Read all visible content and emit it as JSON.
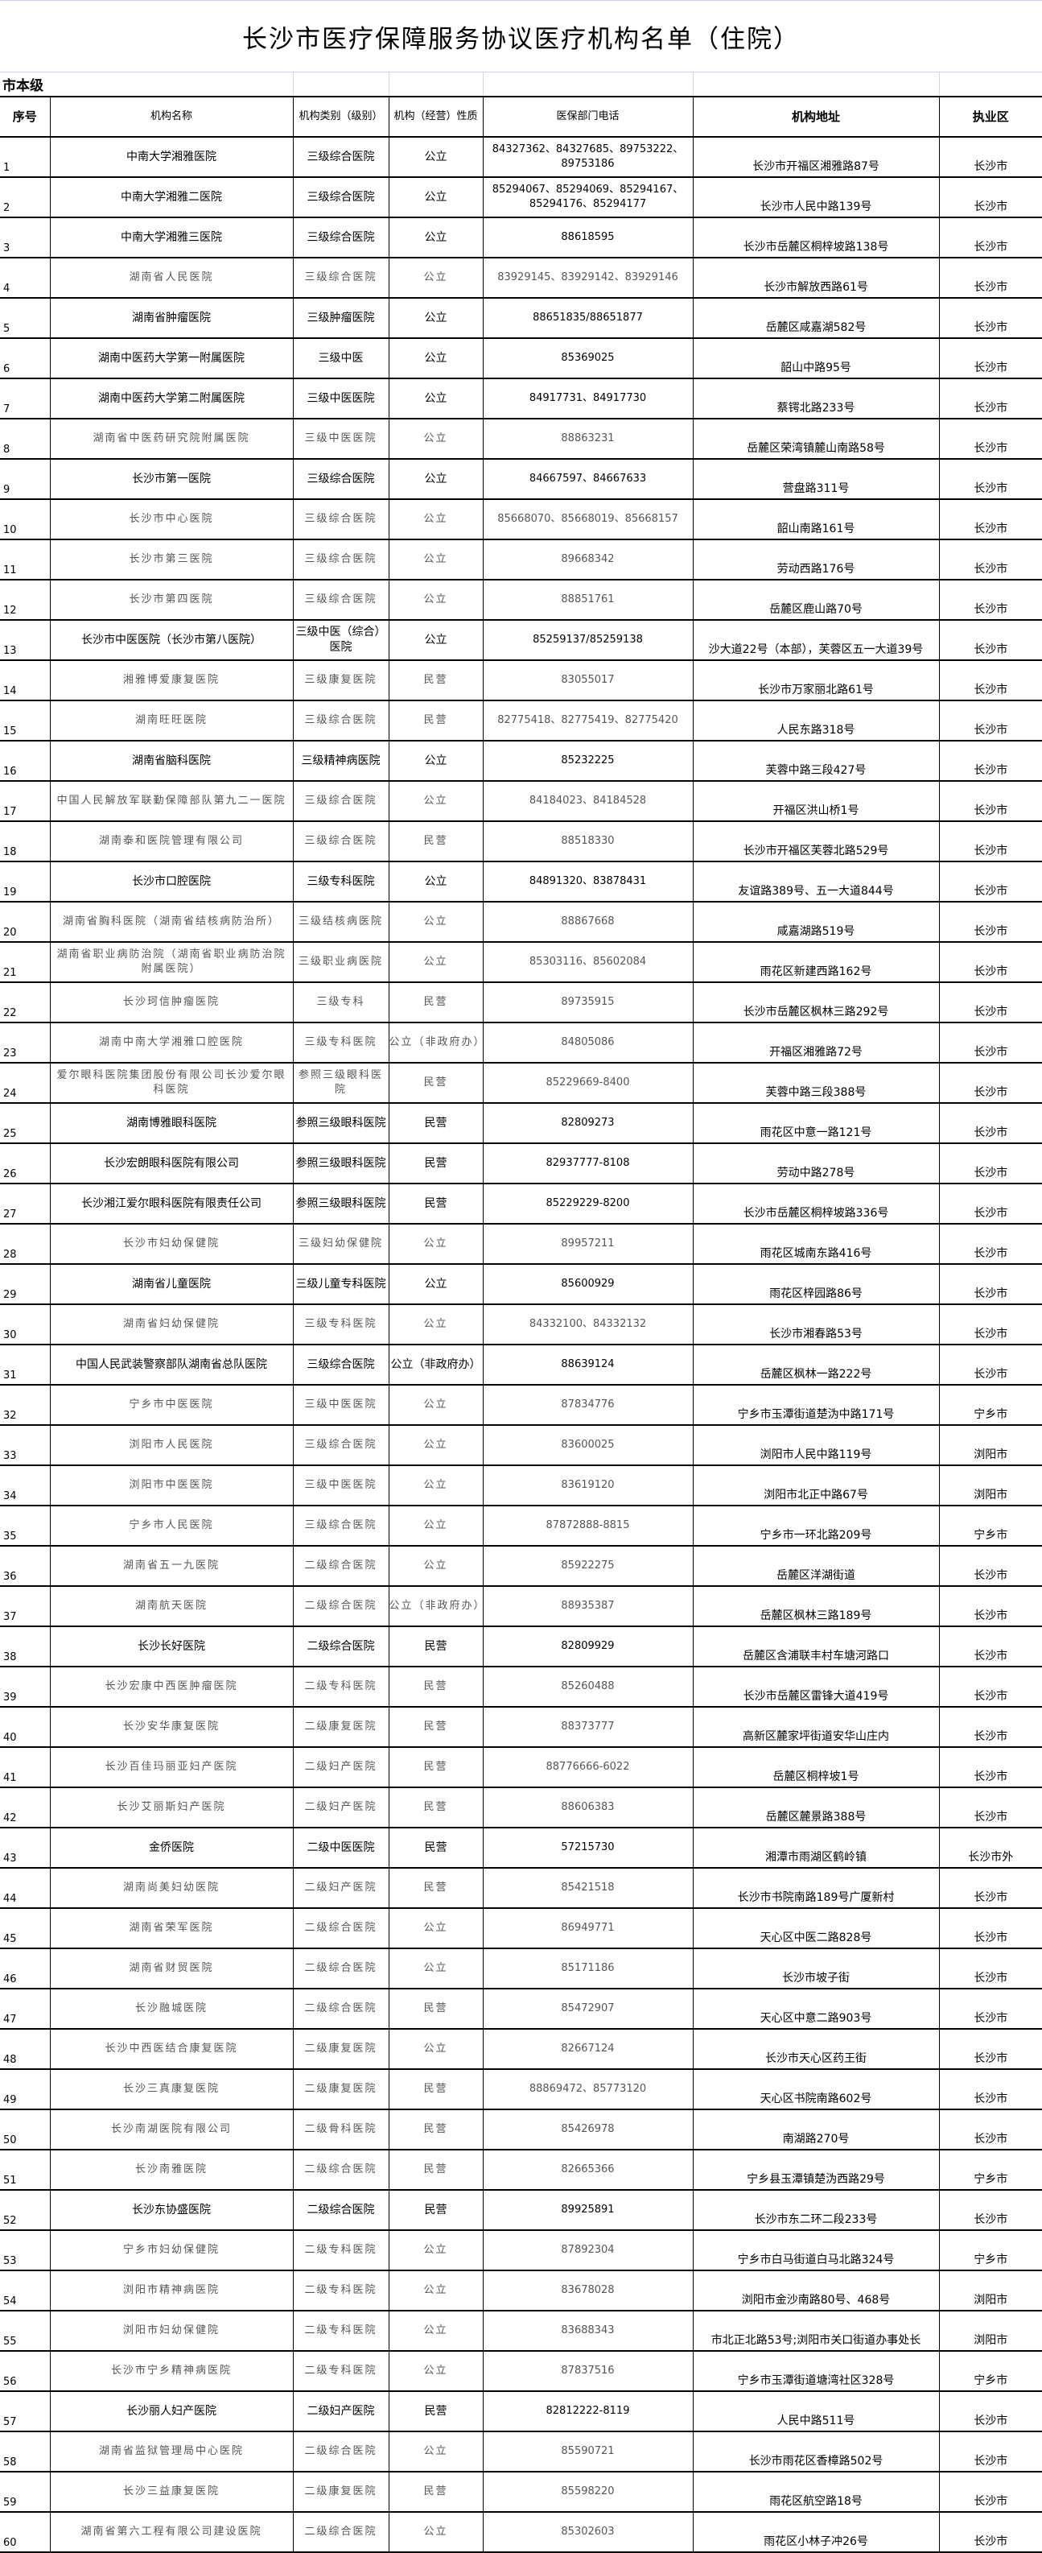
{
  "title": "长沙市医疗保障服务协议医疗机构名单（住院）",
  "section": "市本级",
  "columns": [
    "序号",
    "机构名称",
    "机构类别（级别）",
    "机构（经营）性质",
    "医保部门电话",
    "机构地址",
    "执业区"
  ],
  "rows": [
    [
      "1",
      "中南大学湘雅医院",
      "三级综合医院",
      "公立",
      "84327362、84327685、89753222、89753186",
      "长沙市开福区湘雅路87号",
      "长沙市"
    ],
    [
      "2",
      "中南大学湘雅二医院",
      "三级综合医院",
      "公立",
      "85294067、85294069、85294167、85294176、85294177",
      "长沙市人民中路139号",
      "长沙市"
    ],
    [
      "3",
      "中南大学湘雅三医院",
      "三级综合医院",
      "公立",
      "88618595",
      "长沙市岳麓区桐梓坡路138号",
      "长沙市"
    ],
    [
      "4",
      "湖南省人民医院",
      "三级综合医院",
      "公立",
      "83929145、83929142、83929146",
      "长沙市解放西路61号",
      "长沙市"
    ],
    [
      "5",
      "湖南省肿瘤医院",
      "三级肿瘤医院",
      "公立",
      "88651835/88651877",
      "岳麓区咸嘉湖582号",
      "长沙市"
    ],
    [
      "6",
      "湖南中医药大学第一附属医院",
      "三级中医",
      "公立",
      "85369025",
      "韶山中路95号",
      "长沙市"
    ],
    [
      "7",
      "湖南中医药大学第二附属医院",
      "三级中医医院",
      "公立",
      "84917731、84917730",
      "蔡锷北路233号",
      "长沙市"
    ],
    [
      "8",
      "湖南省中医药研究院附属医院",
      "三级中医医院",
      "公立",
      "88863231",
      "岳麓区荣湾镇麓山南路58号",
      "长沙市"
    ],
    [
      "9",
      "长沙市第一医院",
      "三级综合医院",
      "公立",
      "84667597、84667633",
      "营盘路311号",
      "长沙市"
    ],
    [
      "10",
      "长沙市中心医院",
      "三级综合医院",
      "公立",
      "85668070、85668019、85668157",
      "韶山南路161号",
      "长沙市"
    ],
    [
      "11",
      "长沙市第三医院",
      "三级综合医院",
      "公立",
      "89668342",
      "劳动西路176号",
      "长沙市"
    ],
    [
      "12",
      "长沙市第四医院",
      "三级综合医院",
      "公立",
      "88851761",
      "岳麓区鹿山路70号",
      "长沙市"
    ],
    [
      "13",
      "长沙市中医医院（长沙市第八医院）",
      "三级中医（综合）医院",
      "公立",
      "85259137/85259138",
      "沙大道22号（本部），芙蓉区五一大道39号",
      "长沙市"
    ],
    [
      "14",
      "湘雅博爱康复医院",
      "三级康复医院",
      "民营",
      "83055017",
      "长沙市万家丽北路61号",
      "长沙市"
    ],
    [
      "15",
      "湖南旺旺医院",
      "三级综合医院",
      "民营",
      "82775418、82775419、82775420",
      "人民东路318号",
      "长沙市"
    ],
    [
      "16",
      "湖南省脑科医院",
      "三级精神病医院",
      "公立",
      "85232225",
      "芙蓉中路三段427号",
      "长沙市"
    ],
    [
      "17",
      "中国人民解放军联勤保障部队第九二一医院",
      "三级综合医院",
      "公立",
      "84184023、84184528",
      "开福区洪山桥1号",
      "长沙市"
    ],
    [
      "18",
      "湖南泰和医院管理有限公司",
      "三级综合医院",
      "民营",
      "88518330",
      "长沙市开福区芙蓉北路529号",
      "长沙市"
    ],
    [
      "19",
      "长沙市口腔医院",
      "三级专科医院",
      "公立",
      "84891320、83878431",
      "友谊路389号、五一大道844号",
      "长沙市"
    ],
    [
      "20",
      "湖南省胸科医院（湖南省结核病防治所）",
      "三级结核病医院",
      "公立",
      "88867668",
      "咸嘉湖路519号",
      "长沙市"
    ],
    [
      "21",
      "湖南省职业病防治院（湖南省职业病防治院附属医院）",
      "三级职业病医院",
      "公立",
      "85303116、85602084",
      "雨花区新建西路162号",
      "长沙市"
    ],
    [
      "22",
      "长沙珂信肿瘤医院",
      "三级专科",
      "民营",
      "89735915",
      "长沙市岳麓区枫林三路292号",
      "长沙市"
    ],
    [
      "23",
      "湖南中南大学湘雅口腔医院",
      "三级专科医院",
      "公立（非政府办）",
      "84805086",
      "开福区湘雅路72号",
      "长沙市"
    ],
    [
      "24",
      "爱尔眼科医院集团股份有限公司长沙爱尔眼科医院",
      "参照三级眼科医院",
      "民营",
      "85229669-8400",
      "芙蓉中路三段388号",
      "长沙市"
    ],
    [
      "25",
      "湖南博雅眼科医院",
      "参照三级眼科医院",
      "民营",
      "82809273",
      "雨花区中意一路121号",
      "长沙市"
    ],
    [
      "26",
      "长沙宏朗眼科医院有限公司",
      "参照三级眼科医院",
      "民营",
      "82937777-8108",
      "劳动中路278号",
      "长沙市"
    ],
    [
      "27",
      "长沙湘江爱尔眼科医院有限责任公司",
      "参照三级眼科医院",
      "民营",
      "85229229-8200",
      "长沙市岳麓区桐梓坡路336号",
      "长沙市"
    ],
    [
      "28",
      "长沙市妇幼保健院",
      "三级妇幼保健院",
      "公立",
      "89957211",
      "雨花区城南东路416号",
      "长沙市"
    ],
    [
      "29",
      "湖南省儿童医院",
      "三级儿童专科医院",
      "公立",
      "85600929",
      "雨花区梓园路86号",
      "长沙市"
    ],
    [
      "30",
      "湖南省妇幼保健院",
      "三级专科医院",
      "公立",
      "84332100、84332132",
      "长沙市湘春路53号",
      "长沙市"
    ],
    [
      "31",
      "中国人民武装警察部队湖南省总队医院",
      "三级综合医院",
      "公立（非政府办）",
      "88639124",
      "岳麓区枫林一路222号",
      "长沙市"
    ],
    [
      "32",
      "宁乡市中医医院",
      "三级中医医院",
      "公立",
      "87834776",
      "宁乡市玉潭街道楚沩中路171号",
      "宁乡市"
    ],
    [
      "33",
      "浏阳市人民医院",
      "三级综合医院",
      "公立",
      "83600025",
      "浏阳市人民中路119号",
      "浏阳市"
    ],
    [
      "34",
      "浏阳市中医医院",
      "三级中医医院",
      "公立",
      "83619120",
      "浏阳市北正中路67号",
      "浏阳市"
    ],
    [
      "35",
      "宁乡市人民医院",
      "三级综合医院",
      "公立",
      "87872888-8815",
      "宁乡市一环北路209号",
      "宁乡市"
    ],
    [
      "36",
      "湖南省五一九医院",
      "二级综合医院",
      "公立",
      "85922275",
      "岳麓区洋湖街道",
      "长沙市"
    ],
    [
      "37",
      "湖南航天医院",
      "二级综合医院",
      "公立（非政府办）",
      "88935387",
      "岳麓区枫林三路189号",
      "长沙市"
    ],
    [
      "38",
      "长沙长好医院",
      "二级综合医院",
      "民营",
      "82809929",
      "岳麓区含浦联丰村车塘河路口",
      "长沙市"
    ],
    [
      "39",
      "长沙宏康中西医肿瘤医院",
      "二级专科医院",
      "民营",
      "85260488",
      "长沙市岳麓区雷锋大道419号",
      "长沙市"
    ],
    [
      "40",
      "长沙安华康复医院",
      "二级康复医院",
      "民营",
      "88373777",
      "高新区麓家坪街道安华山庄内",
      "长沙市"
    ],
    [
      "41",
      "长沙百佳玛丽亚妇产医院",
      "二级妇产医院",
      "民营",
      "88776666-6022",
      "岳麓区桐梓坡1号",
      "长沙市"
    ],
    [
      "42",
      "长沙艾丽斯妇产医院",
      "二级妇产医院",
      "民营",
      "88606383",
      "岳麓区麓景路388号",
      "长沙市"
    ],
    [
      "43",
      "金侨医院",
      "二级中医医院",
      "民营",
      "57215730",
      "湘潭市雨湖区鹤岭镇",
      "长沙市外"
    ],
    [
      "44",
      "湖南尚美妇幼医院",
      "二级妇产医院",
      "民营",
      "85421518",
      "长沙市书院南路189号广厦新村",
      "长沙市"
    ],
    [
      "45",
      "湖南省荣军医院",
      "二级综合医院",
      "公立",
      "86949771",
      "天心区中医二路828号",
      "长沙市"
    ],
    [
      "46",
      "湖南省财贸医院",
      "二级综合医院",
      "公立",
      "85171186",
      "长沙市坡子街",
      "长沙市"
    ],
    [
      "47",
      "长沙融城医院",
      "二级综合医院",
      "民营",
      "85472907",
      "天心区中意二路903号",
      "长沙市"
    ],
    [
      "48",
      "长沙中西医结合康复医院",
      "二级康复医院",
      "公立",
      "82667124",
      "长沙市天心区药王街",
      "长沙市"
    ],
    [
      "49",
      "长沙三真康复医院",
      "二级康复医院",
      "民营",
      "88869472、85773120",
      "天心区书院南路602号",
      "长沙市"
    ],
    [
      "50",
      "长沙南湖医院有限公司",
      "二级骨科医院",
      "民营",
      "85426978",
      "南湖路270号",
      "长沙市"
    ],
    [
      "51",
      "长沙南雅医院",
      "二级综合医院",
      "民营",
      "82665366",
      "宁乡县玉潭镇楚沩西路29号",
      "宁乡市"
    ],
    [
      "52",
      "长沙东协盛医院",
      "二级综合医院",
      "民营",
      "89925891",
      "长沙市东二环二段233号",
      "长沙市"
    ],
    [
      "53",
      "宁乡市妇幼保健院",
      "二级专科医院",
      "公立",
      "87892304",
      "宁乡市白马街道白马北路324号",
      "宁乡市"
    ],
    [
      "54",
      "浏阳市精神病医院",
      "二级专科医院",
      "公立",
      "83678028",
      "浏阳市金沙南路80号、468号",
      "浏阳市"
    ],
    [
      "55",
      "浏阳市妇幼保健院",
      "二级专科医院",
      "公立",
      "83688343",
      "市北正北路53号;浏阳市关口街道办事处长",
      "浏阳市"
    ],
    [
      "56",
      "长沙市宁乡精神病医院",
      "二级专科医院",
      "公立",
      "87837516",
      "宁乡市玉潭街道塘湾社区328号",
      "宁乡市"
    ],
    [
      "57",
      "长沙丽人妇产医院",
      "二级妇产医院",
      "民营",
      "82812222-8119",
      "人民中路511号",
      "长沙市"
    ],
    [
      "58",
      "湖南省监狱管理局中心医院",
      "二级综合医院",
      "公立",
      "85590721",
      "长沙市雨花区香樟路502号",
      "长沙市"
    ],
    [
      "59",
      "长沙三益康复医院",
      "二级康复医院",
      "民营",
      "85598220",
      "雨花区航空路18号",
      "长沙市"
    ],
    [
      "60",
      "湖南省第六工程有限公司建设医院",
      "二级综合医院",
      "公立",
      "85302603",
      "雨花区小林子冲26号",
      "长沙市"
    ]
  ]
}
